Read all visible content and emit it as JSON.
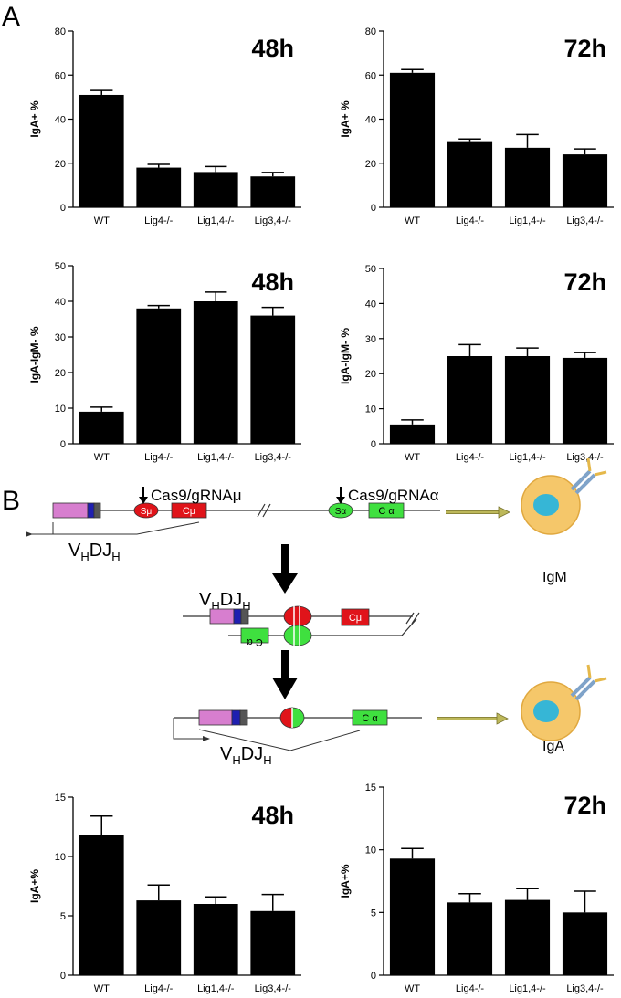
{
  "panels": {
    "a_label": "A",
    "b_label": "B"
  },
  "diagram": {
    "cas_mu": "Cas9/gRNAμ",
    "cas_alpha": "Cas9/gRNAα",
    "s_mu": "Sμ",
    "c_mu": "Cμ",
    "s_alpha": "Sα",
    "c_alpha": "C α",
    "vdj_main": "V",
    "vdj_sub1": "H",
    "vdj_mid": "DJ",
    "vdj_sub2": "H",
    "igm_label": "IgM",
    "iga_label": "IgA",
    "colors": {
      "vh_segment": "#d77ecf",
      "dj_segment": "#1f1fb0",
      "jh_segment": "#555555",
      "mu_red": "#e0141a",
      "alpha_green": "#3fe03f",
      "arrow_olive": "#bdb85a",
      "cell_body": "#f5c76a",
      "nucleus": "#36b6d6",
      "antibody_blue": "#7fa3c9",
      "antibody_gold": "#e5b84a"
    }
  },
  "chart_data": [
    {
      "type": "bar",
      "panel": "A",
      "title": "48h",
      "ylabel": "IgA+ %",
      "ylim": [
        0,
        80
      ],
      "yticks": [
        0,
        20,
        40,
        60,
        80
      ],
      "categories": [
        "WT",
        "Lig4-/-",
        "Lig1,4-/-",
        "Lig3,4-/-"
      ],
      "values": [
        51,
        18,
        16,
        14
      ],
      "errors": [
        2,
        1.5,
        2.5,
        1.8
      ]
    },
    {
      "type": "bar",
      "panel": "A",
      "title": "72h",
      "ylabel": "IgA+ %",
      "ylim": [
        0,
        80
      ],
      "yticks": [
        0,
        20,
        40,
        60,
        80
      ],
      "categories": [
        "WT",
        "Lig4-/-",
        "Lig1,4-/-",
        "Lig3,4-/-"
      ],
      "values": [
        61,
        30,
        27,
        24
      ],
      "errors": [
        1.5,
        1,
        6,
        2.5
      ]
    },
    {
      "type": "bar",
      "panel": "A",
      "title": "48h",
      "ylabel": "IgA-IgM- %",
      "ylim": [
        0,
        50
      ],
      "yticks": [
        0,
        10,
        20,
        30,
        40,
        50
      ],
      "categories": [
        "WT",
        "Lig4-/-",
        "Lig1,4-/-",
        "Lig3,4-/-"
      ],
      "values": [
        9,
        38,
        40,
        36
      ],
      "errors": [
        1.3,
        0.8,
        2.6,
        2.3
      ]
    },
    {
      "type": "bar",
      "panel": "A",
      "title": "72h",
      "ylabel": "IgA-IgM- %",
      "ylim": [
        0,
        50
      ],
      "yticks": [
        0,
        10,
        20,
        30,
        40,
        50
      ],
      "categories": [
        "WT",
        "Lig4-/-",
        "Lig1,4-/-",
        "Lig3,4-/-"
      ],
      "values": [
        5.5,
        25,
        25,
        24.5
      ],
      "errors": [
        1.3,
        3.3,
        2.3,
        1.5
      ]
    },
    {
      "type": "bar",
      "panel": "B",
      "title": "48h",
      "ylabel": "IgA+%",
      "ylim": [
        0,
        15
      ],
      "yticks": [
        0,
        5,
        10,
        15
      ],
      "categories": [
        "WT",
        "Lig4-/-",
        "Lig1,4-/-",
        "Lig3,4-/-"
      ],
      "values": [
        11.8,
        6.3,
        6.0,
        5.4
      ],
      "errors": [
        1.6,
        1.3,
        0.6,
        1.4
      ]
    },
    {
      "type": "bar",
      "panel": "B",
      "title": "72h",
      "ylabel": "IgA+%",
      "ylim": [
        0,
        15
      ],
      "yticks": [
        0,
        5,
        10,
        15
      ],
      "categories": [
        "WT",
        "Lig4-/-",
        "Lig1,4-/-",
        "Lig3,4-/-"
      ],
      "values": [
        9.3,
        5.8,
        6.0,
        5.0
      ],
      "errors": [
        0.8,
        0.7,
        0.9,
        1.7
      ]
    }
  ]
}
